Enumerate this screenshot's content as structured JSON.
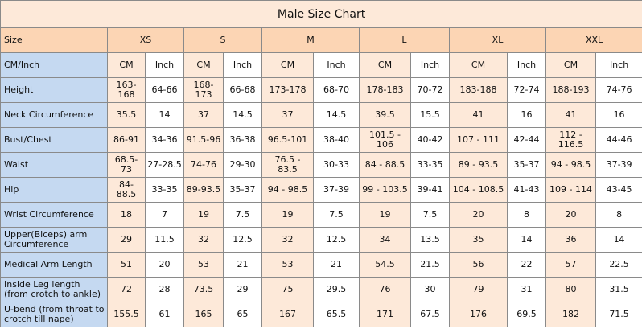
{
  "table": {
    "title": "Male Size Chart",
    "size_row": [
      "Size",
      "XS",
      "S",
      "M",
      "L",
      "XL",
      "XXL"
    ],
    "unit_row": [
      "CM/Inch",
      "CM",
      "Inch",
      "CM",
      "Inch",
      "CM",
      "Inch",
      "CM",
      "Inch",
      "CM",
      "Inch",
      "CM",
      "Inch"
    ],
    "rows": [
      [
        "Height",
        "163-168",
        "64-66",
        "168-173",
        "66-68",
        "173-178",
        "68-70",
        "178-183",
        "70-72",
        "183-188",
        "72-74",
        "188-193",
        "74-76"
      ],
      [
        "Neck Circumference",
        "35.5",
        "14",
        "37",
        "14.5",
        "37",
        "14.5",
        "39.5",
        "15.5",
        "41",
        "16",
        "41",
        "16"
      ],
      [
        "Bust/Chest",
        "86-91",
        "34-36",
        "91.5-96",
        "36-38",
        "96.5-101",
        "38-40",
        "101.5 - 106",
        "40-42",
        "107 - 111",
        "42-44",
        "112 - 116.5",
        "44-46"
      ],
      [
        "Waist",
        "68.5-73",
        "27-28.5",
        "74-76",
        "29-30",
        "76.5 - 83.5",
        "30-33",
        "84 - 88.5",
        "33-35",
        "89 - 93.5",
        "35-37",
        "94 - 98.5",
        "37-39"
      ],
      [
        "Hip",
        "84-88.5",
        "33-35",
        "89-93.5",
        "35-37",
        "94 - 98.5",
        "37-39",
        "99 - 103.5",
        "39-41",
        "104 - 108.5",
        "41-43",
        "109 - 114",
        "43-45"
      ],
      [
        "Wrist Circumference",
        "18",
        "7",
        "19",
        "7.5",
        "19",
        "7.5",
        "19",
        "7.5",
        "20",
        "8",
        "20",
        "8"
      ],
      [
        "Upper(Biceps) arm Circumference",
        "29",
        "11.5",
        "32",
        "12.5",
        "32",
        "12.5",
        "34",
        "13.5",
        "35",
        "14",
        "36",
        "14"
      ],
      [
        "Medical Arm Length",
        "51",
        "20",
        "53",
        "21",
        "53",
        "21",
        "54.5",
        "21.5",
        "56",
        "22",
        "57",
        "22.5"
      ],
      [
        "Inside Leg length (from crotch to ankle)",
        "72",
        "28",
        "73.5",
        "29",
        "75",
        "29.5",
        "76",
        "30",
        "79",
        "31",
        "80",
        "31.5"
      ],
      [
        "U-bend (from throat to crotch till nape)",
        "155.5",
        "61",
        "165",
        "65",
        "167",
        "65.5",
        "171",
        "67.5",
        "176",
        "69.5",
        "182",
        "71.5"
      ]
    ]
  }
}
